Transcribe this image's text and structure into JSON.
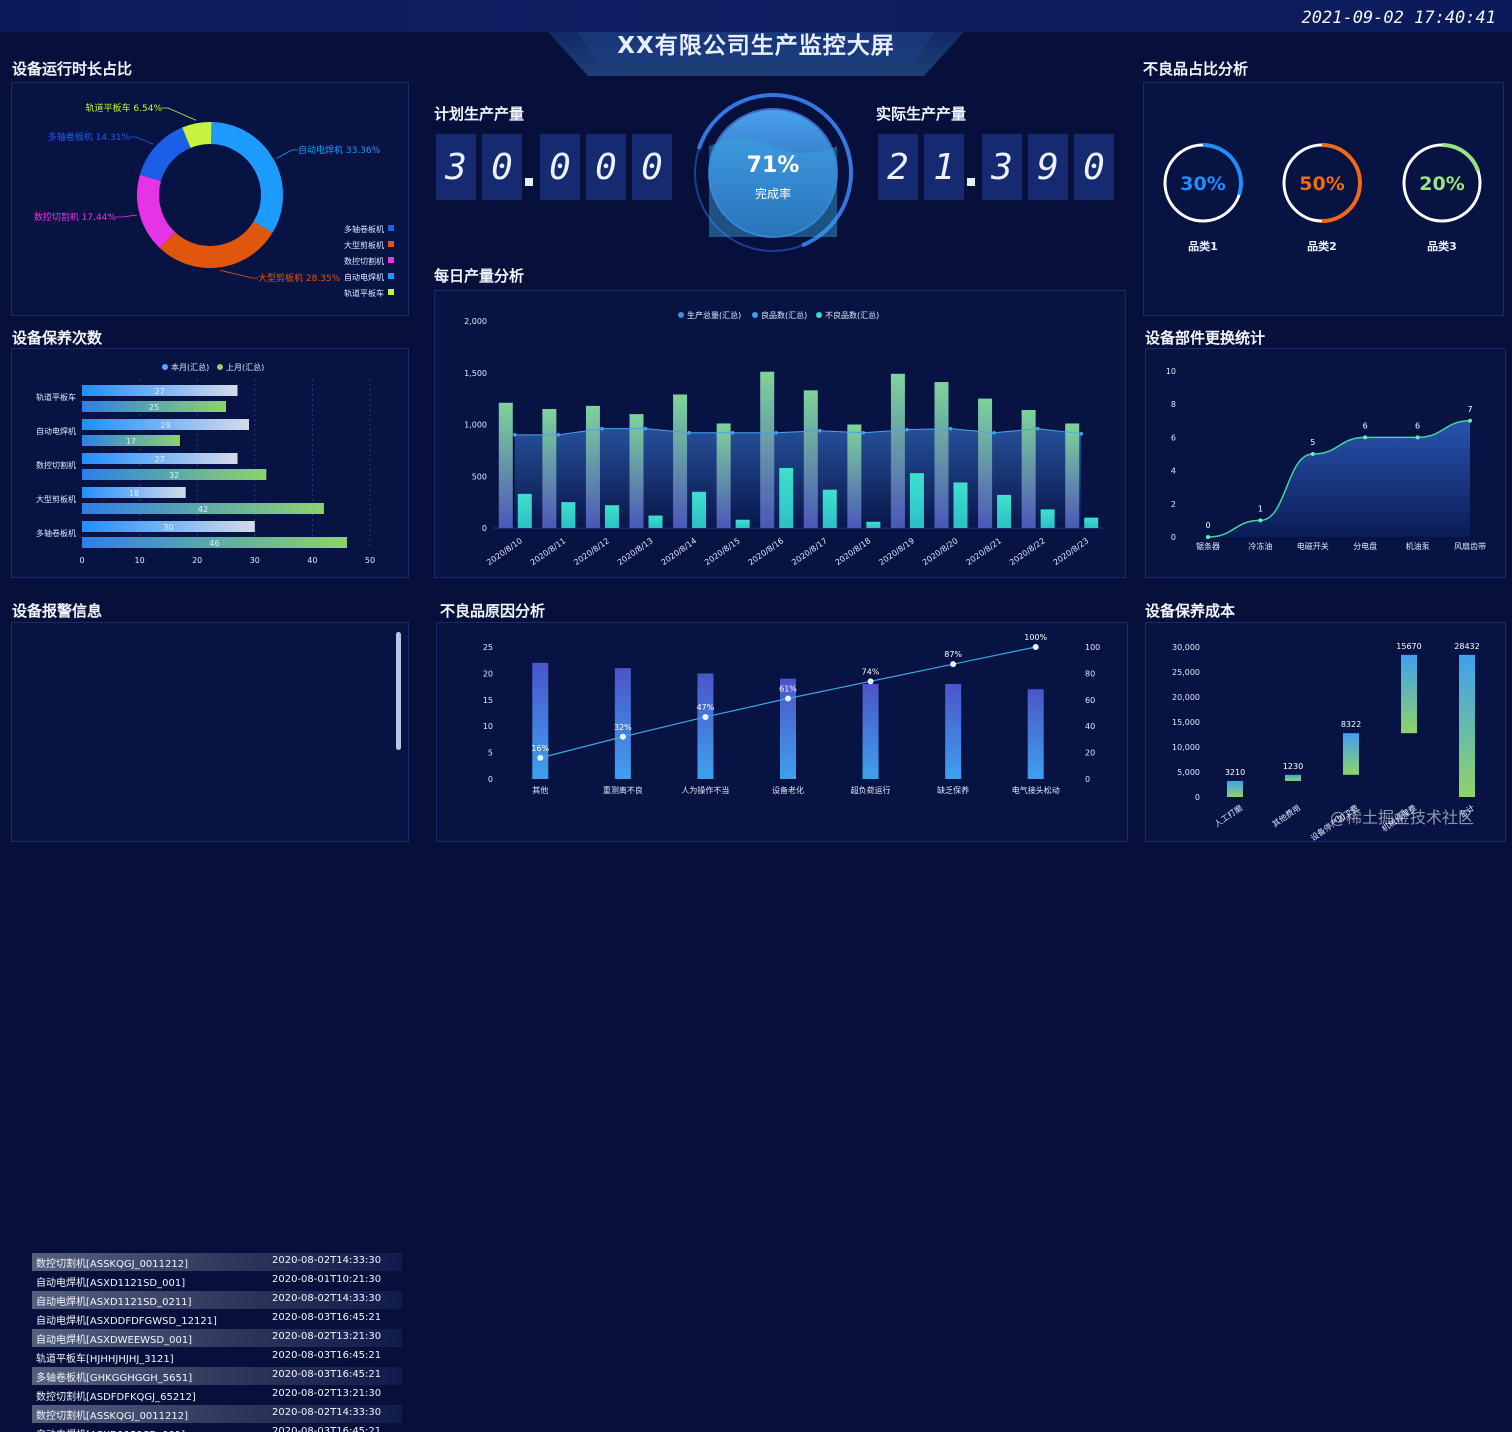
{
  "header": {
    "title": "XX有限公司生产监控大屏",
    "datetime": "2021-09-02 17:40:41"
  },
  "sections": {
    "run_time": "设备运行时长占比",
    "maintenance": "设备保养次数",
    "alarms": "设备报警信息",
    "planned": "计划生产产量",
    "actual": "实际生产产量",
    "daily": "每日产量分析",
    "defect_reasons": "不良品原因分析",
    "defect_ratio": "不良品占比分析",
    "parts": "设备部件更换统计",
    "cost": "设备保养成本"
  },
  "production": {
    "planned_digits": [
      "3",
      "0",
      "0",
      "0",
      "0"
    ],
    "actual_digits": [
      "2",
      "1",
      "3",
      "9",
      "0"
    ],
    "rate": 0.71,
    "rate_text": "71%",
    "rate_label": "完成率"
  },
  "colors": {
    "bg": "#06103a",
    "panel": "#0a1850",
    "accent": "#1e9bff",
    "teal": "#3fd7c9",
    "green": "#7ed36a",
    "magenta": "#e531e0",
    "orange": "#e05a10"
  },
  "charts": {
    "run_time": {
      "type": "pie",
      "slices": [
        {
          "name": "自动电焊机",
          "value": 33.36,
          "label": "自动电焊机 33.36%",
          "color": "#1e9bff"
        },
        {
          "name": "大型剪板机",
          "value": 28.35,
          "label": "大型剪板机 28.35%",
          "color": "#e0560d"
        },
        {
          "name": "数控切割机",
          "value": 17.44,
          "label": "数控切割机 17.44%",
          "color": "#e533e6"
        },
        {
          "name": "多轴卷板机",
          "value": 14.31,
          "label": "多轴卷板机 14.31%",
          "color": "#1b5fe8"
        },
        {
          "name": "轨道平板车",
          "value": 6.54,
          "label": "轨道平板车 6.54%",
          "color": "#c7f23e"
        }
      ],
      "legend": [
        {
          "name": "多轴卷板机",
          "color": "#1b5fe8"
        },
        {
          "name": "大型剪板机",
          "color": "#e0560d"
        },
        {
          "name": "数控切割机",
          "color": "#e533e6"
        },
        {
          "name": "自动电焊机",
          "color": "#1e9bff"
        },
        {
          "name": "轨道平板车",
          "color": "#c7f23e"
        }
      ]
    },
    "maintenance": {
      "type": "bar",
      "orientation": "horizontal",
      "categories": [
        "轨道平板车",
        "自动电焊机",
        "数控切割机",
        "大型剪板机",
        "多轴卷板机"
      ],
      "series": [
        {
          "name": "本月(汇总)",
          "values": [
            27,
            29,
            27,
            18,
            30
          ]
        },
        {
          "name": "上月(汇总)",
          "values": [
            25,
            17,
            32,
            42,
            46
          ]
        }
      ],
      "xticks": [
        "0",
        "10",
        "20",
        "30",
        "40",
        "50"
      ],
      "xlim": [
        0,
        50
      ]
    },
    "daily": {
      "type": "bar",
      "categories": [
        "2020/8/10",
        "2020/8/11",
        "2020/8/12",
        "2020/8/13",
        "2020/8/14",
        "2020/8/15",
        "2020/8/16",
        "2020/8/17",
        "2020/8/18",
        "2020/8/19",
        "2020/8/20",
        "2020/8/21",
        "2020/8/22",
        "2020/8/23"
      ],
      "series": [
        {
          "name": "生产总量(汇总)",
          "values": [
            1210,
            1150,
            1180,
            1100,
            1290,
            1010,
            1510,
            1330,
            1000,
            1490,
            1410,
            1250,
            1140,
            1010
          ]
        },
        {
          "name": "良品数(汇总)",
          "values": [
            900,
            900,
            960,
            960,
            920,
            920,
            920,
            940,
            920,
            950,
            960,
            920,
            960,
            910
          ]
        },
        {
          "name": "不良品数(汇总)",
          "values": [
            330,
            250,
            220,
            120,
            350,
            80,
            580,
            370,
            60,
            530,
            440,
            320,
            180,
            100
          ]
        }
      ],
      "yticks": [
        "0",
        "500",
        "1,000",
        "1,500",
        "2,000"
      ],
      "ylim": [
        0,
        2000
      ]
    },
    "defect_ratio": {
      "type": "pie",
      "items": [
        {
          "name": "品类1",
          "value": 30,
          "text": "30%",
          "color": "#1e8fff"
        },
        {
          "name": "品类2",
          "value": 50,
          "text": "50%",
          "color": "#f06a14"
        },
        {
          "name": "品类3",
          "value": 20,
          "text": "20%",
          "color": "#9be37e"
        }
      ]
    },
    "parts": {
      "type": "line",
      "categories": [
        "锯条器",
        "冷冻油",
        "电磁开关",
        "分电盘",
        "机油泵",
        "风扇齿带"
      ],
      "values": [
        0,
        1,
        5,
        6,
        6,
        7
      ],
      "yticks": [
        "0",
        "2",
        "4",
        "6",
        "8",
        "10"
      ],
      "ylim": [
        0,
        10
      ]
    },
    "defect_reasons": {
      "type": "bar",
      "categories": [
        "其他",
        "重测离不良",
        "人为操作不当",
        "设备老化",
        "超负荷运行",
        "缺乏保养",
        "电气接头松动"
      ],
      "bars": [
        22,
        21,
        20,
        19,
        18,
        18,
        17
      ],
      "line": [
        16,
        32,
        47,
        61,
        74,
        87,
        100
      ],
      "line_labels": [
        "16%",
        "32%",
        "47%",
        "61%",
        "74%",
        "87%",
        "100%"
      ],
      "y_left_ticks": [
        "0",
        "5",
        "10",
        "15",
        "20",
        "25"
      ],
      "y_left_lim": [
        0,
        25
      ],
      "y_right_ticks": [
        "0",
        "20",
        "40",
        "60",
        "80",
        "100"
      ],
      "y_right_lim": [
        0,
        100
      ]
    },
    "cost": {
      "type": "bar",
      "categories": [
        "人工打磨",
        "其他费用",
        "设备停产加工费",
        "机械修理费",
        "合计"
      ],
      "bases": [
        0,
        3210,
        4440,
        12762,
        0
      ],
      "values": [
        3210,
        1230,
        8322,
        15670,
        28432
      ],
      "labels": [
        "3210",
        "1230",
        "8322",
        "15670",
        "28432"
      ],
      "yticks": [
        "0",
        "5,000",
        "10,000",
        "15,000",
        "20,000",
        "25,000",
        "30,000"
      ],
      "ylim": [
        0,
        30000
      ]
    }
  },
  "alarms": [
    {
      "name": "数控切割机[ASSKQGJ_0011212]",
      "time": "2020-08-02T14:33:30"
    },
    {
      "name": "自动电焊机[ASXD1121SD_001]",
      "time": "2020-08-01T10:21:30"
    },
    {
      "name": "自动电焊机[ASXD1121SD_0211]",
      "time": "2020-08-02T14:33:30"
    },
    {
      "name": "自动电焊机[ASXDDFDFGWSD_12121]",
      "time": "2020-08-03T16:45:21"
    },
    {
      "name": "自动电焊机[ASXDWEEWSD_001]",
      "time": "2020-08-02T13:21:30"
    },
    {
      "name": "轨道平板车[HJHHJHJHJ_3121]",
      "time": "2020-08-03T16:45:21"
    },
    {
      "name": "多轴卷板机[GHKGGHGGH_5651]",
      "time": "2020-08-03T16:45:21"
    },
    {
      "name": "数控切割机[ASDFDFKQGJ_65212]",
      "time": "2020-08-02T13:21:30"
    },
    {
      "name": "数控切割机[ASSKQGJ_0011212]",
      "time": "2020-08-02T14:33:30"
    }
  ],
  "watermark": "@稀土掘金技术社区"
}
